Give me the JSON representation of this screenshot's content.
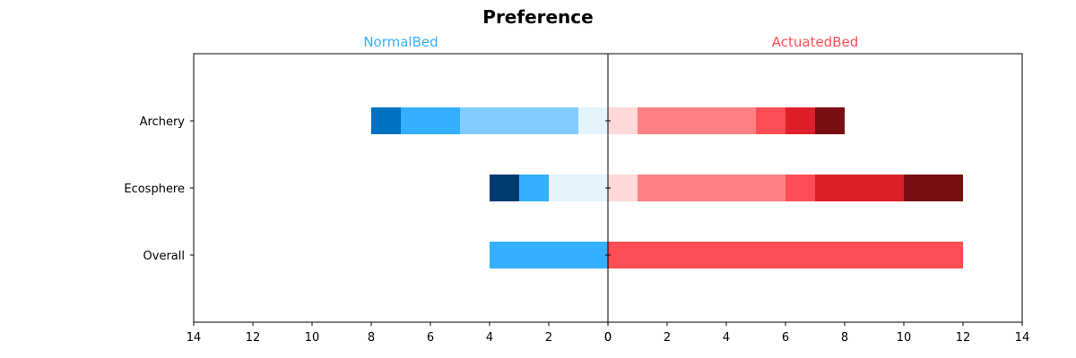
{
  "chart_data": {
    "type": "bar",
    "orientation": "horizontal-diverging-stacked",
    "title": "Preference",
    "categories": [
      "Archery",
      "Ecosphere",
      "Overall"
    ],
    "xlim": [
      14,
      0,
      14
    ],
    "xticks_left": [
      "14",
      "12",
      "10",
      "8",
      "6",
      "4",
      "2",
      "0"
    ],
    "xticks_right": [
      "0",
      "2",
      "4",
      "6",
      "8",
      "10",
      "12",
      "14"
    ],
    "left": {
      "label": "NormalBed",
      "label_color": "#33b0ff",
      "segments": {
        "Archery": [
          {
            "from": 0,
            "to": 1,
            "color": "#e3f4fd"
          },
          {
            "from": 1,
            "to": 5,
            "color": "#80ccff"
          },
          {
            "from": 5,
            "to": 7,
            "color": "#33b0ff"
          },
          {
            "from": 7,
            "to": 8,
            "color": "#0070c0"
          }
        ],
        "Ecosphere": [
          {
            "from": 0,
            "to": 2,
            "color": "#e3f4fd"
          },
          {
            "from": 2,
            "to": 3,
            "color": "#33b0ff"
          },
          {
            "from": 3,
            "to": 4,
            "color": "#003a70"
          }
        ],
        "Overall": [
          {
            "from": 0,
            "to": 4,
            "color": "#33b0ff"
          }
        ]
      }
    },
    "right": {
      "label": "ActuatedBed",
      "label_color": "#ff4d55",
      "segments": {
        "Archery": [
          {
            "from": 0,
            "to": 1,
            "color": "#ffd8da"
          },
          {
            "from": 1,
            "to": 5,
            "color": "#ff8084"
          },
          {
            "from": 5,
            "to": 6,
            "color": "#ff4d55"
          },
          {
            "from": 6,
            "to": 7,
            "color": "#dc1f28"
          },
          {
            "from": 7,
            "to": 8,
            "color": "#780d12"
          }
        ],
        "Ecosphere": [
          {
            "from": 0,
            "to": 1,
            "color": "#ffd8da"
          },
          {
            "from": 1,
            "to": 6,
            "color": "#ff8084"
          },
          {
            "from": 6,
            "to": 7,
            "color": "#ff4d55"
          },
          {
            "from": 7,
            "to": 10,
            "color": "#dc1f28"
          },
          {
            "from": 10,
            "to": 12,
            "color": "#780d12"
          }
        ],
        "Overall": [
          {
            "from": 0,
            "to": 12,
            "color": "#ff4d55"
          }
        ]
      }
    }
  }
}
